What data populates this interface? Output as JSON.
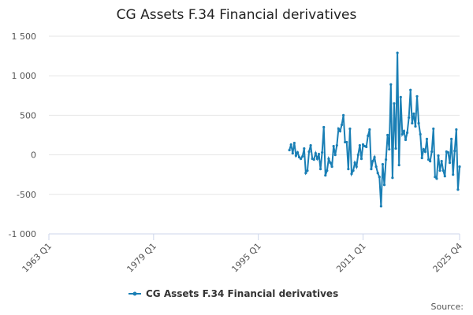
{
  "chart_data": {
    "type": "line",
    "title": "CG Assets F.34 Financial derivatives",
    "categories": [
      "1963 Q1",
      null,
      null,
      null,
      null,
      null,
      null,
      null,
      null,
      null,
      null,
      null,
      null,
      null,
      null,
      null,
      null,
      null,
      null,
      null,
      null,
      null,
      null,
      null,
      null,
      null,
      null,
      null,
      null,
      null,
      null,
      null,
      null,
      null,
      null,
      null,
      null,
      null,
      null,
      null,
      null,
      null,
      null,
      null,
      null,
      null,
      null,
      null,
      null,
      null,
      null,
      null,
      null,
      null,
      null,
      null,
      null,
      null,
      null,
      null,
      null,
      null,
      null,
      null,
      "1979 Q1",
      null,
      null,
      null,
      null,
      null,
      null,
      null,
      null,
      null,
      null,
      null,
      null,
      null,
      null,
      null,
      null,
      null,
      null,
      null,
      null,
      null,
      null,
      null,
      null,
      null,
      null,
      null,
      null,
      null,
      null,
      null,
      null,
      null,
      null,
      null,
      null,
      null,
      null,
      null,
      null,
      null,
      null,
      null,
      null,
      null,
      null,
      null,
      null,
      null,
      null,
      null,
      null,
      null,
      null,
      null,
      null,
      null,
      null,
      null,
      null,
      null,
      null,
      null,
      "1995 Q1",
      null,
      null,
      null,
      null,
      null,
      null,
      null,
      null,
      null,
      null,
      null,
      null,
      null,
      null,
      null,
      null,
      null,
      null,
      null,
      null,
      null,
      null,
      null,
      null,
      null,
      null,
      null,
      null,
      null,
      null,
      null,
      null,
      null,
      null,
      null,
      null,
      null,
      null,
      null,
      null,
      null,
      null,
      null,
      null,
      null,
      null,
      null,
      null,
      null,
      null,
      null,
      null,
      null,
      null,
      null,
      null,
      null,
      null,
      null,
      null,
      null,
      null,
      null,
      "2011 Q1",
      null,
      null,
      null,
      null,
      null,
      null,
      null,
      null,
      null,
      null,
      null,
      null,
      null,
      null,
      null,
      null,
      null,
      null,
      null,
      null,
      null,
      null,
      null,
      null,
      null,
      null,
      null,
      null,
      null,
      null,
      null,
      null,
      null,
      null,
      null,
      null,
      null,
      null,
      null,
      null,
      null,
      null,
      null,
      null,
      null,
      null,
      null,
      null,
      null,
      null,
      null,
      null,
      null,
      null,
      null,
      null,
      null,
      null,
      "2025 Q4"
    ],
    "series": [
      {
        "name": "CG Assets F.34 Financial derivatives",
        "color": "#1a7fb5",
        "values": [
          null,
          null,
          null,
          null,
          null,
          null,
          null,
          null,
          null,
          null,
          null,
          null,
          null,
          null,
          null,
          null,
          null,
          null,
          null,
          null,
          null,
          null,
          null,
          null,
          null,
          null,
          null,
          null,
          null,
          null,
          null,
          null,
          null,
          null,
          null,
          null,
          null,
          null,
          null,
          null,
          null,
          null,
          null,
          null,
          null,
          null,
          null,
          null,
          null,
          null,
          null,
          null,
          null,
          null,
          null,
          null,
          null,
          null,
          null,
          null,
          null,
          null,
          null,
          null,
          null,
          null,
          null,
          null,
          null,
          null,
          null,
          null,
          null,
          null,
          null,
          null,
          null,
          null,
          null,
          null,
          null,
          null,
          null,
          null,
          null,
          null,
          null,
          null,
          null,
          null,
          null,
          null,
          null,
          null,
          null,
          null,
          null,
          null,
          null,
          null,
          null,
          null,
          null,
          null,
          null,
          null,
          null,
          null,
          null,
          null,
          null,
          null,
          null,
          null,
          null,
          null,
          null,
          null,
          null,
          null,
          null,
          null,
          null,
          null,
          null,
          null,
          null,
          null,
          null,
          null,
          null,
          null,
          null,
          null,
          null,
          null,
          null,
          null,
          null,
          null,
          null,
          null,
          null,
          null,
          null,
          null,
          null,
          60,
          130,
          20,
          150,
          -10,
          30,
          -30,
          -50,
          -20,
          80,
          -230,
          -200,
          40,
          120,
          -50,
          -60,
          20,
          -50,
          10,
          -180,
          30,
          350,
          -260,
          -200,
          -50,
          -100,
          -150,
          110,
          0,
          120,
          330,
          300,
          380,
          500,
          160,
          160,
          -180,
          330,
          -240,
          -200,
          -100,
          -150,
          0,
          120,
          -50,
          130,
          110,
          100,
          240,
          320,
          -180,
          -80,
          -30,
          -150,
          -230,
          -280,
          -650,
          -120,
          -380,
          -60,
          250,
          70,
          890,
          -290,
          650,
          80,
          1290,
          -130,
          730,
          260,
          300,
          190,
          280,
          470,
          820,
          400,
          520,
          360,
          740,
          400,
          260,
          -40,
          70,
          40,
          200,
          -60,
          -80,
          40,
          330,
          -280,
          -300,
          -10,
          -200,
          -80,
          -200,
          -270,
          40,
          30,
          -100,
          200,
          -250,
          50,
          320,
          -440,
          -150
        ]
      }
    ],
    "ylim": [
      -1000,
      1500
    ],
    "yticks": [
      {
        "value": -1000,
        "label": "-1 000"
      },
      -500,
      0,
      500,
      {
        "value": 1000,
        "label": "1 000"
      },
      {
        "value": 1500,
        "label": "1 500"
      }
    ],
    "grid": true,
    "legend": "bottom",
    "source": "Source:"
  }
}
